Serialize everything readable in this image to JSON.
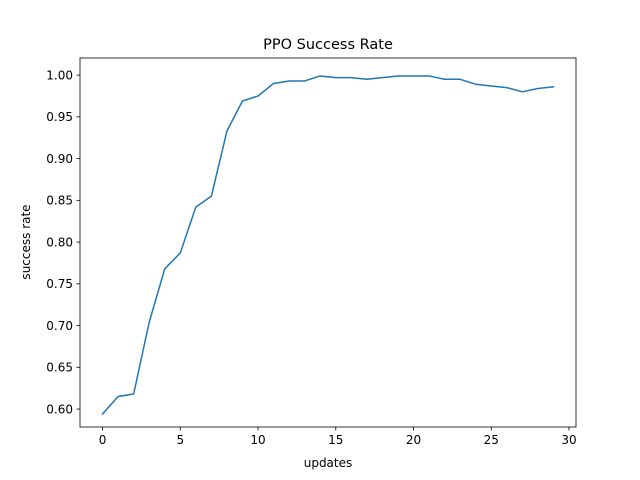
{
  "chart_data": {
    "type": "line",
    "title": "PPO Success Rate",
    "xlabel": "updates",
    "ylabel": "success rate",
    "xlim": [
      -1.45,
      30.45
    ],
    "ylim": [
      0.5785,
      1.0205
    ],
    "xticks": [
      0,
      5,
      10,
      15,
      20,
      25,
      30
    ],
    "yticks": [
      0.6,
      0.65,
      0.7,
      0.75,
      0.8,
      0.85,
      0.9,
      0.95,
      1.0
    ],
    "grid": false,
    "legend": "none",
    "series": [
      {
        "color": "#1f77b4",
        "x": [
          0,
          1,
          2,
          3,
          4,
          5,
          6,
          7,
          8,
          9,
          10,
          11,
          12,
          13,
          14,
          15,
          16,
          17,
          18,
          19,
          20,
          21,
          22,
          23,
          24,
          25,
          26,
          27,
          28,
          29
        ],
        "values": [
          0.594,
          0.615,
          0.618,
          0.704,
          0.768,
          0.787,
          0.842,
          0.855,
          0.933,
          0.969,
          0.975,
          0.99,
          0.993,
          0.993,
          0.999,
          0.997,
          0.997,
          0.995,
          0.997,
          0.999,
          0.999,
          0.999,
          0.995,
          0.995,
          0.989,
          0.987,
          0.985,
          0.98,
          0.984,
          0.986
        ]
      }
    ]
  }
}
